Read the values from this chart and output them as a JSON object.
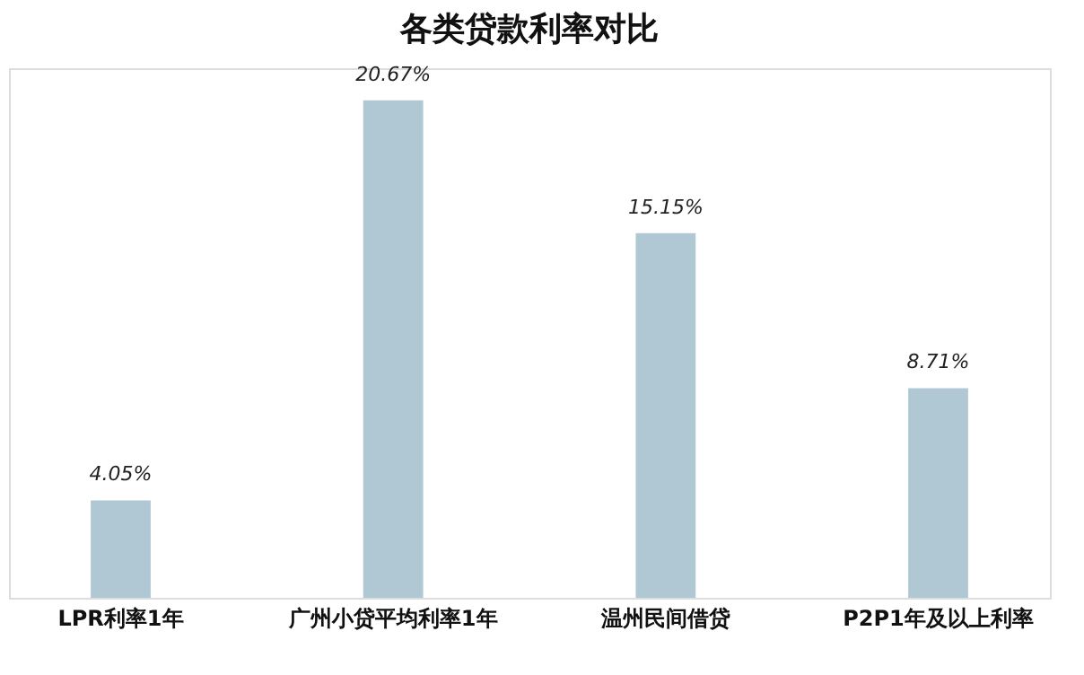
{
  "chart_data": {
    "type": "bar",
    "title": "各类贷款利率对比",
    "categories": [
      "LPR利率1年",
      "广州小贷平均利率1年",
      "温州民间借贷",
      "P2P1年及以上利率"
    ],
    "values": [
      4.05,
      20.67,
      15.15,
      8.71
    ],
    "value_labels": [
      "4.05%",
      "20.67%",
      "15.15%",
      "8.71%"
    ],
    "color": "#b0c8d4"
  }
}
